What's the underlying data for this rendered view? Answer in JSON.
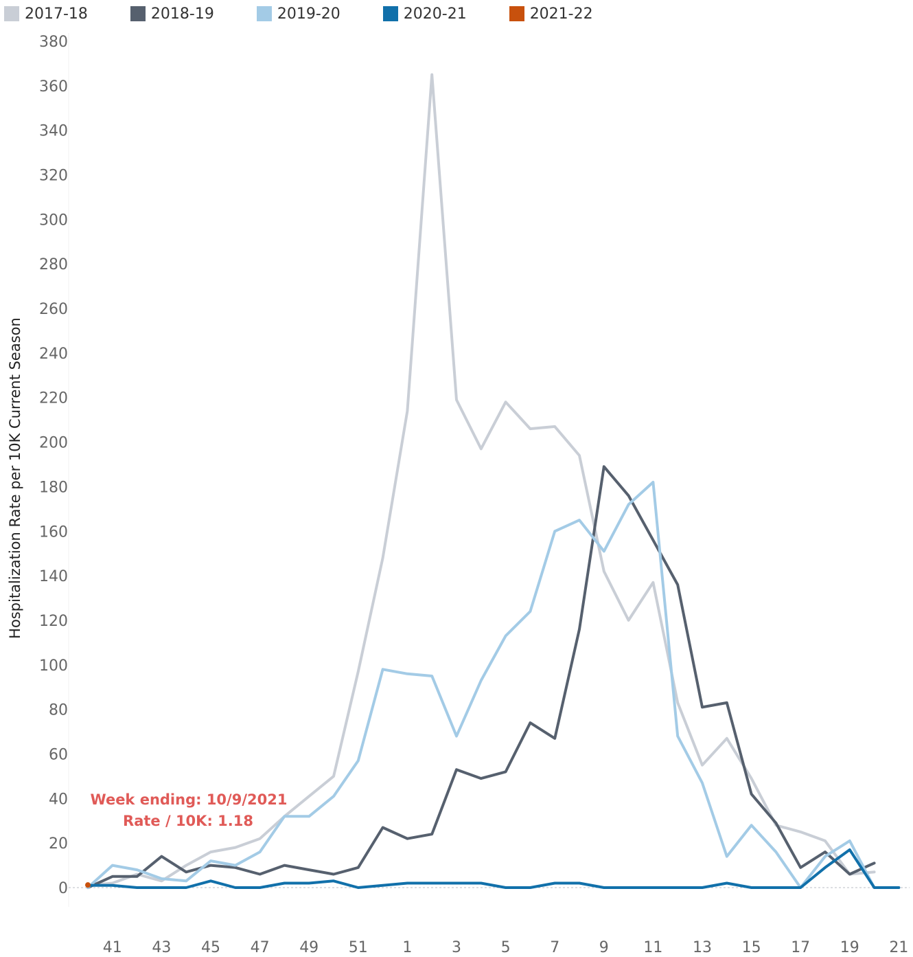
{
  "chart_data": {
    "type": "line",
    "title": "",
    "ylabel": "Hospitalization Rate per 10K Current Season",
    "xlabel": "",
    "ylim": [
      0,
      380
    ],
    "yticks": [
      0,
      20,
      40,
      60,
      80,
      100,
      120,
      140,
      160,
      180,
      200,
      220,
      240,
      260,
      280,
      300,
      320,
      340,
      360,
      380
    ],
    "x_weeks": [
      40,
      41,
      42,
      43,
      44,
      45,
      46,
      47,
      48,
      49,
      50,
      51,
      52,
      1,
      2,
      3,
      4,
      5,
      6,
      7,
      8,
      9,
      10,
      11,
      12,
      13,
      14,
      15,
      16,
      17,
      18,
      19,
      20,
      21
    ],
    "xticks": [
      "41",
      "43",
      "45",
      "47",
      "49",
      "51",
      "1",
      "3",
      "5",
      "7",
      "9",
      "11",
      "13",
      "15",
      "17",
      "19",
      "21"
    ],
    "legend_position": "top-left",
    "grid": false,
    "series": [
      {
        "name": "2017-18",
        "color": "#c9ced6",
        "values": [
          1,
          2,
          6,
          3,
          10,
          16,
          18,
          22,
          32,
          41,
          50,
          97,
          148,
          214,
          365,
          219,
          197,
          218,
          206,
          207,
          194,
          142,
          120,
          137,
          83,
          55,
          67,
          49,
          28,
          25,
          21,
          6,
          7,
          null
        ]
      },
      {
        "name": "2018-19",
        "color": "#56606e",
        "values": [
          0,
          5,
          5,
          14,
          7,
          10,
          9,
          6,
          10,
          8,
          6,
          9,
          27,
          22,
          24,
          53,
          49,
          52,
          74,
          67,
          116,
          189,
          176,
          156,
          136,
          81,
          83,
          42,
          29,
          9,
          16,
          6,
          11,
          null
        ]
      },
      {
        "name": "2019-20",
        "color": "#a3cbe6",
        "values": [
          0,
          10,
          8,
          4,
          3,
          12,
          10,
          16,
          32,
          32,
          41,
          57,
          98,
          96,
          95,
          68,
          93,
          113,
          124,
          160,
          165,
          151,
          172,
          182,
          68,
          47,
          14,
          28,
          16,
          0,
          14,
          21,
          0,
          null
        ]
      },
      {
        "name": "2020-21",
        "color": "#1170aa",
        "values": [
          1,
          1,
          0,
          0,
          0,
          3,
          0,
          0,
          2,
          2,
          3,
          0,
          1,
          2,
          2,
          2,
          2,
          0,
          0,
          2,
          2,
          0,
          0,
          0,
          0,
          0,
          2,
          0,
          0,
          0,
          9,
          17,
          0,
          0
        ]
      },
      {
        "name": "2021-22",
        "color": "#c8510d",
        "values": [
          1.18,
          null,
          null,
          null,
          null,
          null,
          null,
          null,
          null,
          null,
          null,
          null,
          null,
          null,
          null,
          null,
          null,
          null,
          null,
          null,
          null,
          null,
          null,
          null,
          null,
          null,
          null,
          null,
          null,
          null,
          null,
          null,
          null,
          null
        ]
      }
    ],
    "annotation": {
      "line1": "Week ending: 10/9/2021",
      "line2": "Rate / 10K: 1.18"
    }
  }
}
